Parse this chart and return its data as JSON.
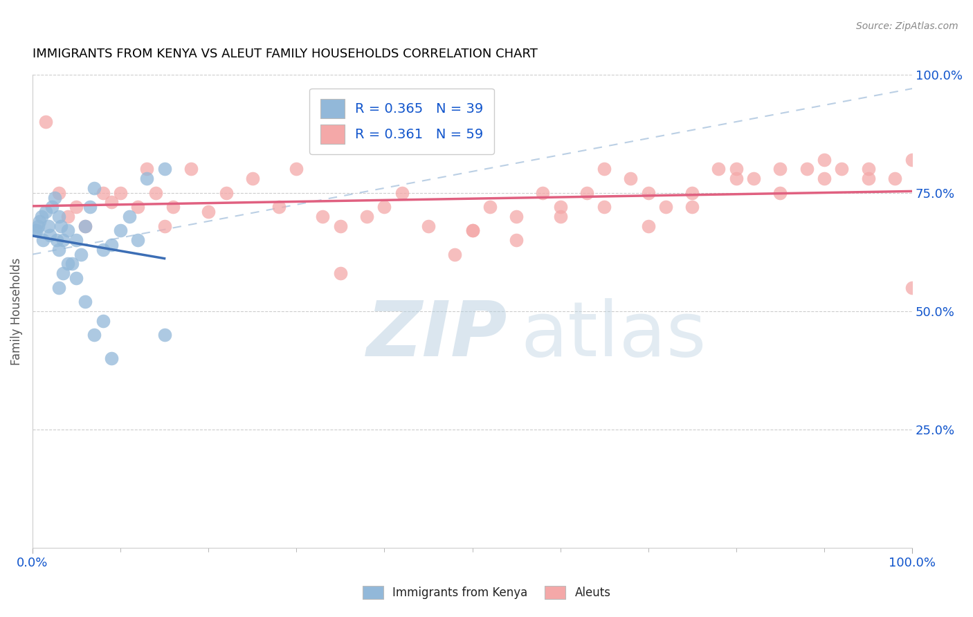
{
  "title": "IMMIGRANTS FROM KENYA VS ALEUT FAMILY HOUSEHOLDS CORRELATION CHART",
  "source_text": "Source: ZipAtlas.com",
  "ylabel": "Family Households",
  "legend_label1": "Immigrants from Kenya",
  "legend_label2": "Aleuts",
  "R1": "0.365",
  "N1": "39",
  "R2": "0.361",
  "N2": "59",
  "color_blue": "#92b8d9",
  "color_pink": "#f4a8a8",
  "color_blue_line": "#3c6eb5",
  "color_pink_line": "#e06080",
  "color_blue_dark": "#1155cc",
  "blue_scatter_x": [
    0.3,
    0.5,
    0.6,
    0.8,
    1.0,
    1.2,
    1.5,
    1.8,
    2.0,
    2.2,
    2.5,
    2.8,
    3.0,
    3.0,
    3.2,
    3.5,
    4.0,
    4.5,
    5.0,
    5.5,
    6.0,
    6.5,
    7.0,
    8.0,
    9.0,
    10.0,
    11.0,
    12.0,
    13.0,
    15.0,
    3.0,
    3.5,
    4.0,
    5.0,
    6.0,
    7.0,
    8.0,
    9.0,
    15.0
  ],
  "blue_scatter_y": [
    67,
    67,
    68,
    69,
    70,
    65,
    71,
    68,
    66,
    72,
    74,
    65,
    63,
    70,
    68,
    65,
    67,
    60,
    65,
    62,
    68,
    72,
    76,
    63,
    64,
    67,
    70,
    65,
    78,
    80,
    55,
    58,
    60,
    57,
    52,
    45,
    48,
    40,
    45
  ],
  "pink_scatter_x": [
    1.5,
    3.0,
    4.0,
    5.0,
    6.0,
    8.0,
    9.0,
    10.0,
    12.0,
    13.0,
    14.0,
    15.0,
    16.0,
    18.0,
    20.0,
    22.0,
    25.0,
    28.0,
    30.0,
    33.0,
    35.0,
    38.0,
    40.0,
    42.0,
    45.0,
    48.0,
    50.0,
    52.0,
    55.0,
    58.0,
    60.0,
    63.0,
    65.0,
    68.0,
    70.0,
    72.0,
    75.0,
    78.0,
    80.0,
    82.0,
    85.0,
    88.0,
    90.0,
    92.0,
    95.0,
    98.0,
    100.0,
    35.0,
    50.0,
    55.0,
    60.0,
    65.0,
    70.0,
    75.0,
    80.0,
    85.0,
    90.0,
    95.0,
    100.0
  ],
  "pink_scatter_y": [
    90,
    75,
    70,
    72,
    68,
    75,
    73,
    75,
    72,
    80,
    75,
    68,
    72,
    80,
    71,
    75,
    78,
    72,
    80,
    70,
    68,
    70,
    72,
    75,
    68,
    62,
    67,
    72,
    70,
    75,
    72,
    75,
    80,
    78,
    75,
    72,
    75,
    80,
    80,
    78,
    80,
    80,
    82,
    80,
    78,
    78,
    55,
    58,
    67,
    65,
    70,
    72,
    68,
    72,
    78,
    75,
    78,
    80,
    82
  ],
  "background_color": "#ffffff",
  "grid_color": "#cccccc",
  "title_color": "#000000",
  "watermark_color_zip": "#b0c8e0",
  "watermark_color_atlas": "#b0c8e0"
}
